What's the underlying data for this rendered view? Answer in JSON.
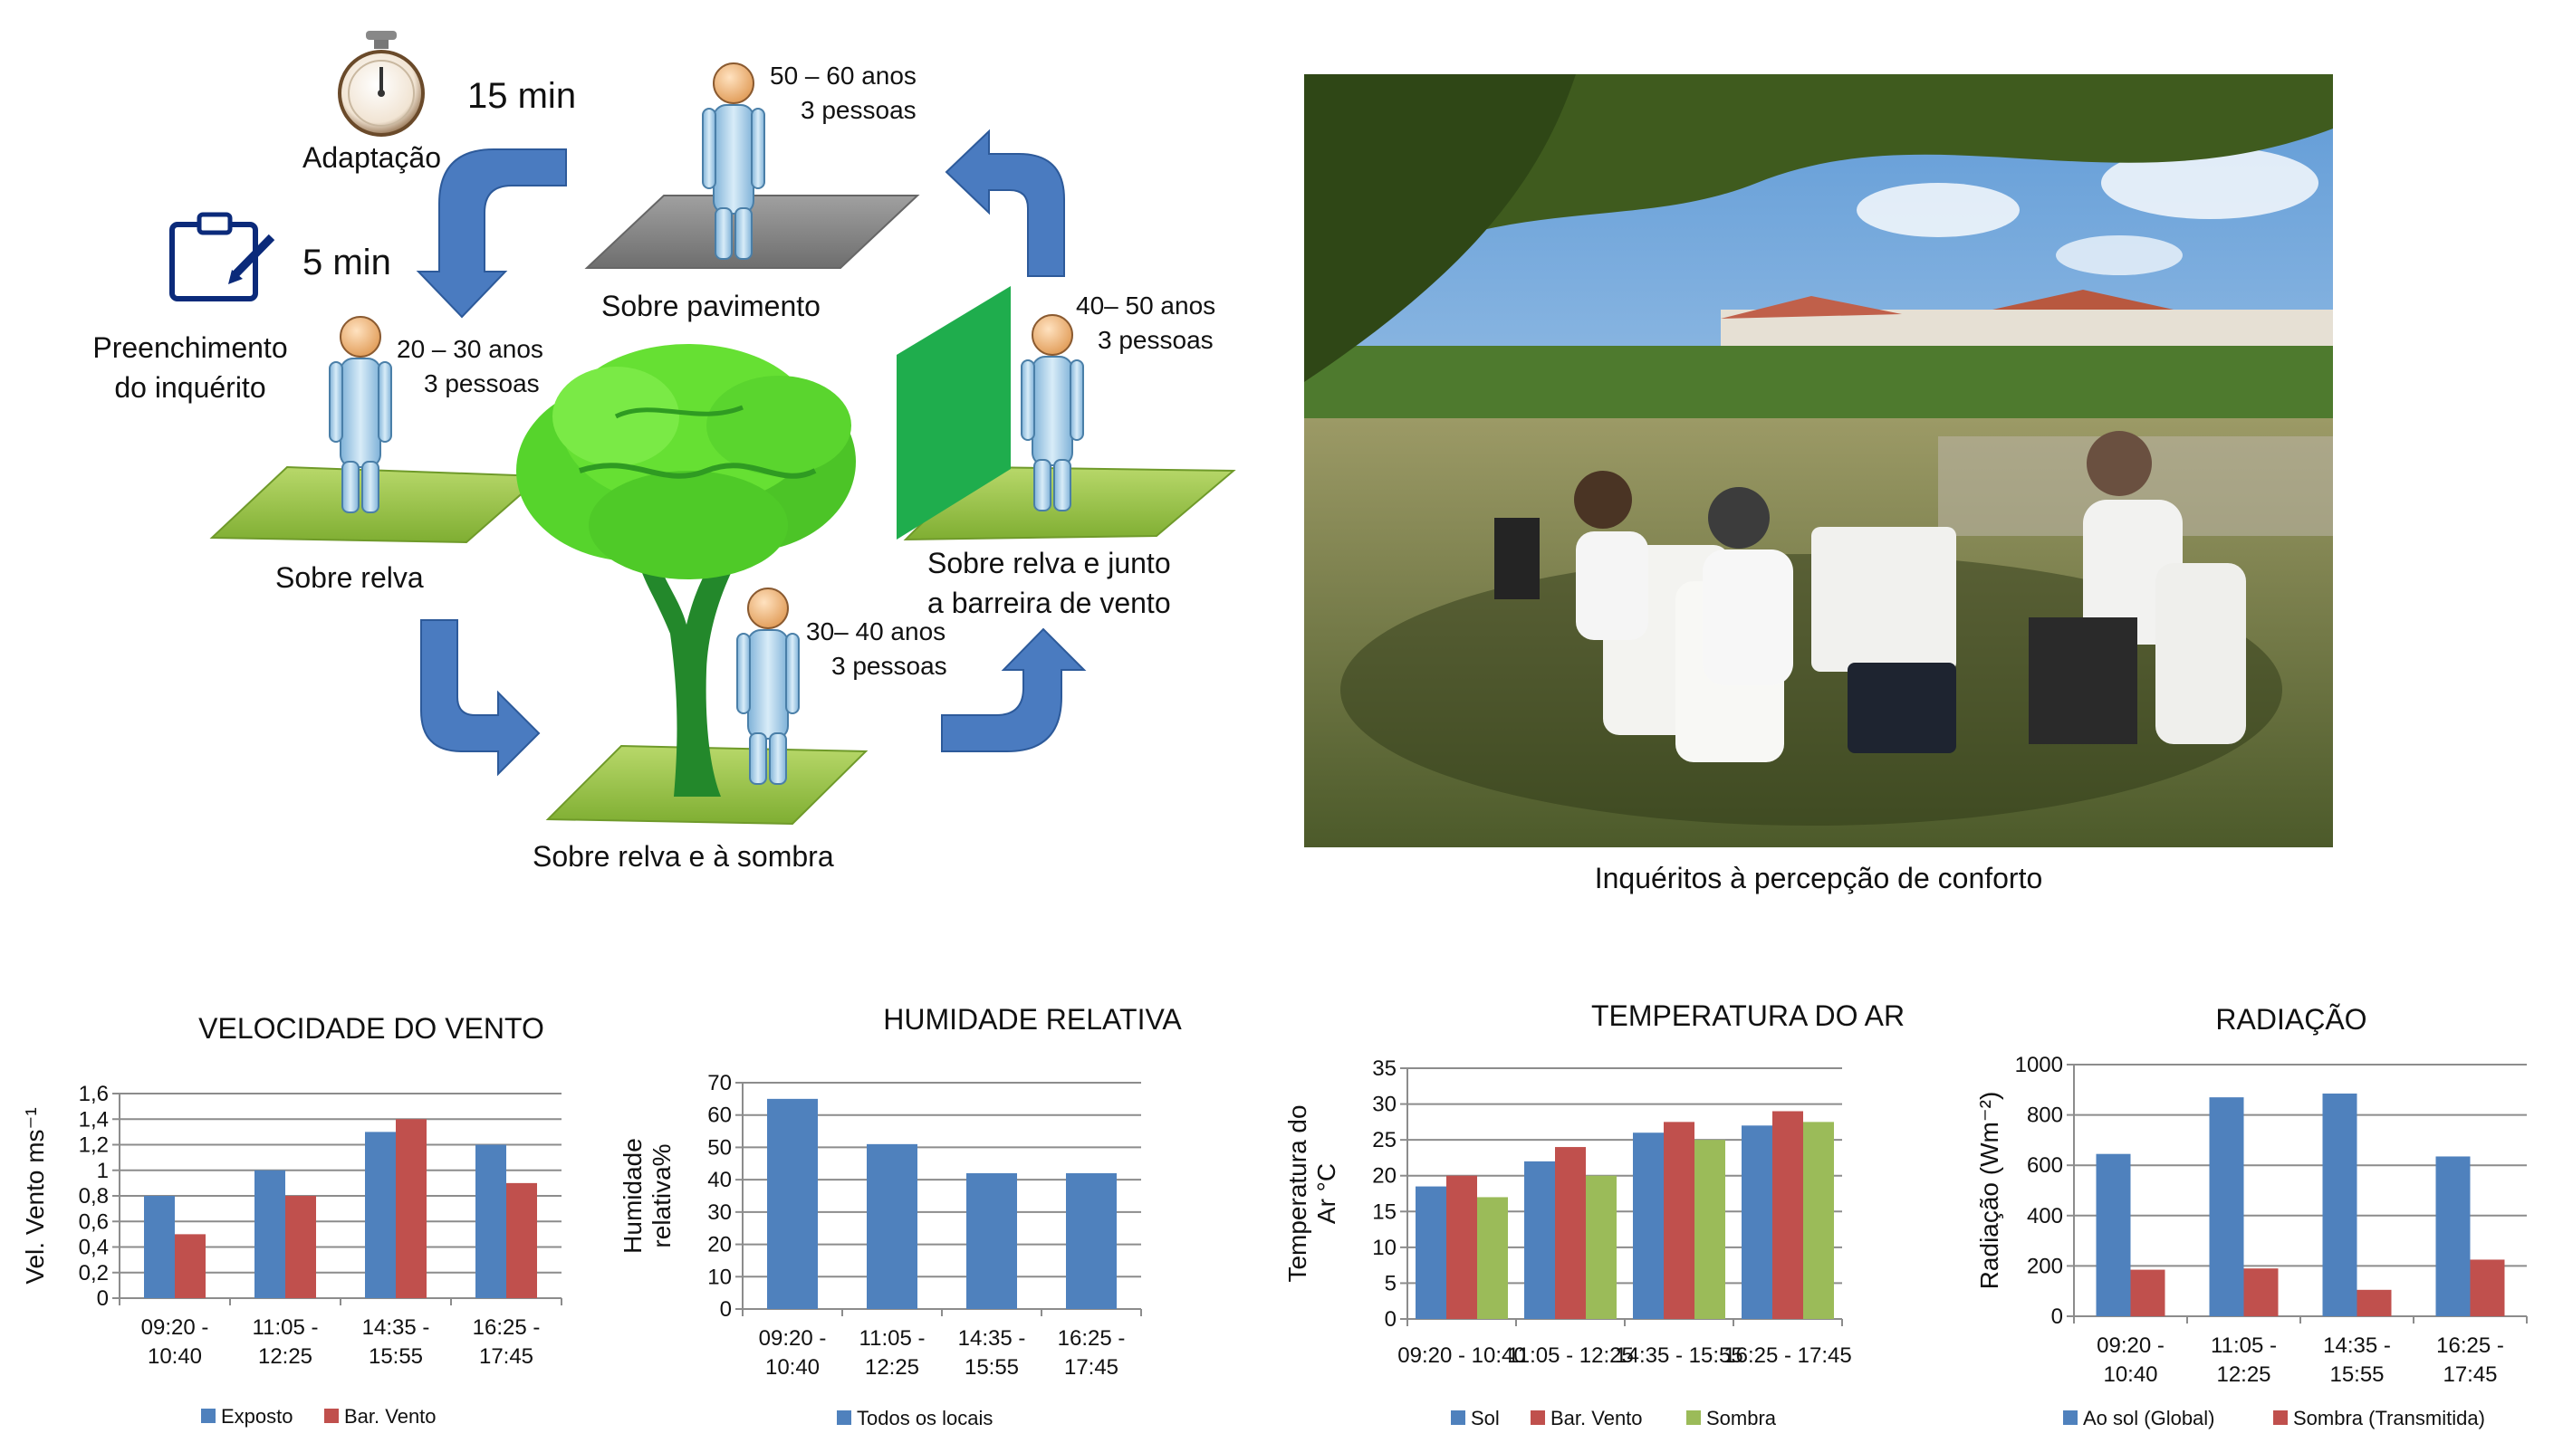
{
  "diagram": {
    "time_adaptation": "15 min",
    "adaptation_label": "Adaptação",
    "time_survey": "5 min",
    "survey_label_line1": "Preenchimento",
    "survey_label_line2": "do inquérito",
    "station_pavement": {
      "label": "Sobre pavimento",
      "age": "50 – 60 anos",
      "people": "3 pessoas"
    },
    "station_grass": {
      "label": "Sobre relva",
      "age": "20 – 30 anos",
      "people": "3 pessoas"
    },
    "station_wind": {
      "label_line1": "Sobre relva e junto",
      "label_line2": "a barreira de vento",
      "age": "40– 50 anos",
      "people": "3 pessoas"
    },
    "station_shade": {
      "label": "Sobre relva e à sombra",
      "age": "30– 40 anos",
      "people": "3 pessoas"
    }
  },
  "photo": {
    "caption": "Inquéritos à percepção de conforto"
  },
  "chart_data": [
    {
      "type": "bar",
      "title": "VELOCIDADE DO VENTO",
      "ylabel": "Vel. Vento ms⁻¹",
      "categories": [
        "09:20 - 10:40",
        "11:05 - 12:25",
        "14:35 - 15:55",
        "16:25 - 17:45"
      ],
      "categories_wrapped": [
        [
          "09:20 -",
          "10:40"
        ],
        [
          "11:05 -",
          "12:25"
        ],
        [
          "14:35 -",
          "15:55"
        ],
        [
          "16:25 -",
          "17:45"
        ]
      ],
      "ylim": [
        0,
        1.6
      ],
      "yticks": [
        "0",
        "0,2",
        "0,4",
        "0,6",
        "0,8",
        "1",
        "1,2",
        "1,4",
        "1,6"
      ],
      "series": [
        {
          "name": "Exposto",
          "color": "#4f81bd",
          "values": [
            0.8,
            1.0,
            1.3,
            1.2
          ]
        },
        {
          "name": "Bar. Vento",
          "color": "#c0504d",
          "values": [
            0.5,
            0.8,
            1.4,
            0.9
          ]
        }
      ],
      "grid": true,
      "legend": "bottom"
    },
    {
      "type": "bar",
      "title": "HUMIDADE RELATIVA",
      "ylabel_line1": "Humidade",
      "ylabel_line2": "relativa%",
      "categories": [
        "09:20 - 10:40",
        "11:05 - 12:25",
        "14:35 - 15:55",
        "16:25 - 17:45"
      ],
      "categories_wrapped": [
        [
          "09:20 -",
          "10:40"
        ],
        [
          "11:05 -",
          "12:25"
        ],
        [
          "14:35 -",
          "15:55"
        ],
        [
          "16:25 -",
          "17:45"
        ]
      ],
      "ylim": [
        0,
        70
      ],
      "yticks": [
        "0",
        "10",
        "20",
        "30",
        "40",
        "50",
        "60",
        "70"
      ],
      "series": [
        {
          "name": "Todos os locais",
          "color": "#4f81bd",
          "values": [
            65,
            51,
            42,
            42
          ]
        }
      ],
      "grid": true,
      "legend": "bottom"
    },
    {
      "type": "bar",
      "title": "TEMPERATURA DO AR",
      "ylabel_line1": "Temperatura do",
      "ylabel_line2": "Ar °C",
      "categories": [
        "09:20 - 10:40",
        "11:05 - 12:25",
        "14:35 - 15:55",
        "16:25 - 17:45"
      ],
      "ylim": [
        0,
        35
      ],
      "yticks": [
        "0",
        "5",
        "10",
        "15",
        "20",
        "25",
        "30",
        "35"
      ],
      "series": [
        {
          "name": "Sol",
          "color": "#4f81bd",
          "values": [
            18.5,
            22,
            26,
            27
          ]
        },
        {
          "name": "Bar. Vento",
          "color": "#c0504d",
          "values": [
            20,
            24,
            27.5,
            29
          ]
        },
        {
          "name": "Sombra",
          "color": "#9bbb59",
          "values": [
            17,
            20,
            25,
            27.5
          ]
        }
      ],
      "grid": true,
      "legend": "bottom"
    },
    {
      "type": "bar",
      "title": "RADIAÇÃO",
      "ylabel": "Radiação (Wm⁻²)",
      "categories": [
        "09:20 - 10:40",
        "11:05 - 12:25",
        "14:35 - 15:55",
        "16:25 - 17:45"
      ],
      "categories_wrapped": [
        [
          "09:20 -",
          "10:40"
        ],
        [
          "11:05 -",
          "12:25"
        ],
        [
          "14:35 -",
          "15:55"
        ],
        [
          "16:25 -",
          "17:45"
        ]
      ],
      "ylim": [
        0,
        1000
      ],
      "yticks": [
        "0",
        "200",
        "400",
        "600",
        "800",
        "1000"
      ],
      "series": [
        {
          "name": "Ao sol (Global)",
          "color": "#4f81bd",
          "values": [
            645,
            870,
            885,
            635
          ]
        },
        {
          "name": "Sombra (Transmitida)",
          "color": "#c0504d",
          "values": [
            185,
            190,
            105,
            225
          ]
        }
      ],
      "grid": true,
      "legend": "bottom"
    }
  ]
}
